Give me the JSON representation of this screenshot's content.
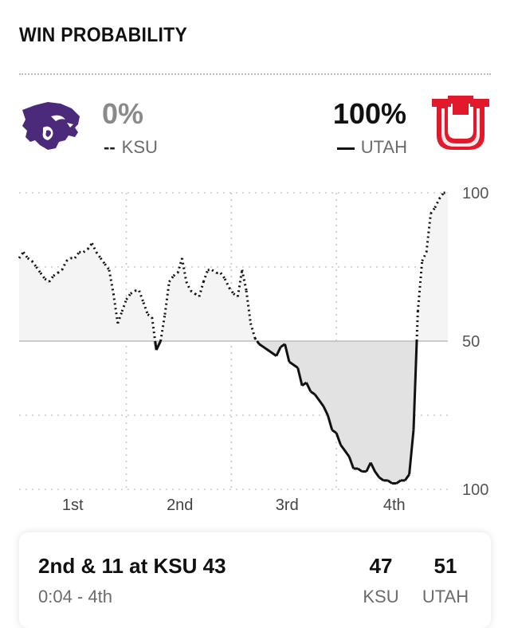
{
  "header": {
    "title": "WIN PROBABILITY"
  },
  "teams": {
    "away": {
      "pct": "0%",
      "legend_mark": "--",
      "abbr": "KSU",
      "logo": "wildcat-icon",
      "color": "#4b2a7b"
    },
    "home": {
      "pct": "100%",
      "abbr": "UTAH",
      "logo": "block-u-icon",
      "color": "#e1192b"
    }
  },
  "chart_data": {
    "type": "line",
    "title": "",
    "y_axis": {
      "min": 0,
      "max": 100,
      "tick_labels": [
        "100",
        "50",
        "100"
      ]
    },
    "x_labels": [
      "1st",
      "2nd",
      "3rd",
      "4th"
    ],
    "grid": true,
    "series": [
      {
        "name": "UTAH",
        "line_style": "solid-below-50 dotted-above-50",
        "x": [
          0,
          1,
          2,
          3,
          4,
          5,
          6,
          7,
          8,
          9,
          10,
          11,
          12,
          13,
          14,
          15,
          16,
          17,
          18,
          19,
          20,
          21,
          22,
          23,
          24,
          25,
          26,
          27,
          28,
          29,
          30,
          31,
          32,
          33,
          34,
          35,
          36,
          37,
          38,
          39,
          40,
          41,
          42,
          43,
          44,
          45,
          46,
          47,
          48,
          49,
          50,
          51,
          52,
          53,
          54,
          55,
          56,
          57,
          58,
          59,
          60,
          61,
          62,
          63,
          64,
          65,
          66,
          67,
          68,
          69,
          70,
          71,
          72,
          73,
          74,
          75,
          76,
          77,
          78,
          79,
          80,
          81,
          82,
          83,
          84,
          85,
          86,
          87,
          88,
          89,
          90,
          91,
          92,
          93,
          94,
          95,
          96,
          97,
          98,
          99,
          100
        ],
        "values": [
          78,
          80,
          78,
          77,
          75,
          73,
          71,
          70,
          72,
          73,
          74,
          77,
          78,
          78,
          80,
          80,
          81,
          83,
          80,
          78,
          76,
          74,
          66,
          56,
          60,
          64,
          66,
          67,
          67,
          63,
          59,
          58,
          47,
          50,
          59,
          70,
          72,
          73,
          78,
          70,
          67,
          66,
          65,
          70,
          74,
          74,
          73,
          73,
          71,
          68,
          66,
          65,
          74,
          67,
          56,
          51,
          49,
          48,
          47,
          46,
          45,
          48,
          49,
          43,
          42,
          41,
          35,
          36,
          33,
          32,
          30,
          28,
          25,
          20,
          19,
          15,
          13,
          11,
          7,
          7,
          6,
          6,
          9,
          6,
          4,
          3,
          3,
          2,
          2,
          3,
          3,
          5,
          20,
          60,
          77,
          80,
          93,
          95,
          98,
          100,
          100
        ]
      }
    ]
  },
  "play": {
    "situation": "2nd & 11 at KSU 43",
    "clock": "0:04 - 4th",
    "away_score": "47",
    "away_abbr": "KSU",
    "home_score": "51",
    "home_abbr": "UTAH"
  }
}
